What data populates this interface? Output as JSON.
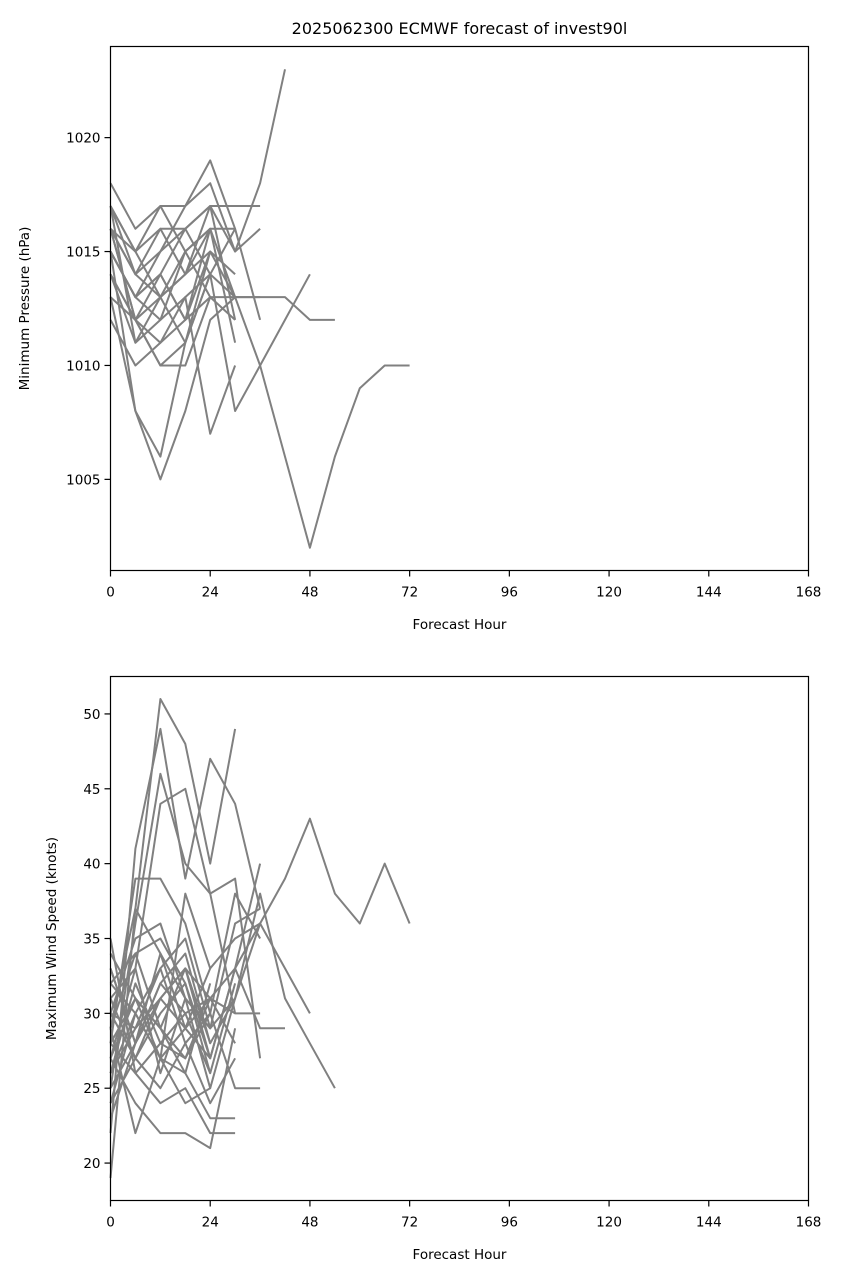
{
  "chart_data": [
    {
      "type": "line",
      "title": "2025062300 ECMWF forecast of invest90l",
      "xlabel": "Forecast Hour",
      "ylabel": "Minimum Pressure (hPa)",
      "xlim": [
        0,
        168
      ],
      "ylim": [
        1001,
        1024
      ],
      "xticks": [
        0,
        24,
        48,
        72,
        96,
        120,
        144,
        168
      ],
      "yticks": [
        1005,
        1010,
        1015,
        1020
      ],
      "line_color": "#808080",
      "grid": false,
      "series": [
        {
          "x": [
            0,
            6,
            12,
            18,
            24,
            30,
            36,
            42
          ],
          "y": [
            1018,
            1016,
            1017,
            1017,
            1018,
            1015,
            1018,
            1023
          ]
        },
        {
          "x": [
            0,
            6,
            12,
            18,
            24,
            30,
            36
          ],
          "y": [
            1017,
            1015,
            1016,
            1016,
            1017,
            1017,
            1017
          ]
        },
        {
          "x": [
            0,
            6,
            12,
            18,
            24,
            30
          ],
          "y": [
            1016,
            1014,
            1015,
            1017,
            1019,
            1016
          ]
        },
        {
          "x": [
            0,
            6,
            12,
            18,
            24,
            30,
            36
          ],
          "y": [
            1017,
            1015,
            1017,
            1015,
            1016,
            1016,
            1012
          ]
        },
        {
          "x": [
            0,
            6,
            12,
            18,
            24,
            30
          ],
          "y": [
            1015,
            1013,
            1014,
            1016,
            1017,
            1012
          ]
        },
        {
          "x": [
            0,
            6,
            12,
            18,
            24,
            30
          ],
          "y": [
            1016,
            1014,
            1013,
            1015,
            1016,
            1011
          ]
        },
        {
          "x": [
            0,
            6,
            12,
            18,
            24,
            30,
            36
          ],
          "y": [
            1014,
            1012,
            1013,
            1014,
            1017,
            1015,
            1016
          ]
        },
        {
          "x": [
            0,
            6,
            12,
            18,
            24,
            30,
            36
          ],
          "y": [
            1015,
            1013,
            1014,
            1012,
            1016,
            1013,
            1013
          ]
        },
        {
          "x": [
            0,
            6,
            12,
            18,
            24,
            30
          ],
          "y": [
            1016,
            1015,
            1013,
            1014,
            1015,
            1013
          ]
        },
        {
          "x": [
            0,
            6,
            12,
            18,
            24,
            30,
            36,
            42,
            48,
            54
          ],
          "y": [
            1013,
            1012,
            1011,
            1012,
            1013,
            1013,
            1013,
            1013,
            1012,
            1012
          ]
        },
        {
          "x": [
            0,
            6,
            12,
            18,
            24,
            30,
            36,
            42,
            48
          ],
          "y": [
            1012,
            1010,
            1011,
            1013,
            1014,
            1008,
            1010,
            1012,
            1014
          ]
        },
        {
          "x": [
            0,
            6,
            12,
            18,
            24,
            30,
            36,
            42,
            48,
            54,
            60,
            66,
            72
          ],
          "y": [
            1014,
            1012,
            1010,
            1011,
            1014,
            1013,
            1010,
            1006,
            1002,
            1006,
            1009,
            1010,
            1010
          ]
        },
        {
          "x": [
            0,
            6,
            12,
            18,
            24,
            30
          ],
          "y": [
            1013,
            1008,
            1006,
            1011,
            1015,
            1014
          ]
        },
        {
          "x": [
            0,
            6,
            12,
            18,
            24,
            30
          ],
          "y": [
            1015,
            1008,
            1005,
            1008,
            1012,
            1013
          ]
        },
        {
          "x": [
            0,
            6,
            12,
            18,
            24,
            30
          ],
          "y": [
            1016,
            1012,
            1010,
            1010,
            1013,
            1012
          ]
        },
        {
          "x": [
            0,
            6,
            12,
            18,
            24,
            30
          ],
          "y": [
            1017,
            1011,
            1012,
            1013,
            1007,
            1010
          ]
        },
        {
          "x": [
            0,
            6,
            12,
            18,
            24,
            30
          ],
          "y": [
            1015,
            1013,
            1015,
            1016,
            1014,
            1016
          ]
        },
        {
          "x": [
            0,
            6,
            12,
            18,
            24
          ],
          "y": [
            1017,
            1014,
            1016,
            1014,
            1016
          ]
        },
        {
          "x": [
            0,
            6,
            12,
            18,
            24
          ],
          "y": [
            1016,
            1012,
            1014,
            1012,
            1015
          ]
        },
        {
          "x": [
            0,
            6,
            12,
            18,
            24
          ],
          "y": [
            1014,
            1011,
            1013,
            1011,
            1014
          ]
        },
        {
          "x": [
            0,
            6,
            12,
            18,
            24
          ],
          "y": [
            1015,
            1013,
            1012,
            1015,
            1013
          ]
        }
      ]
    },
    {
      "type": "line",
      "title": "",
      "xlabel": "Forecast Hour",
      "ylabel": "Maximum Wind Speed (knots)",
      "xlim": [
        0,
        168
      ],
      "ylim": [
        17.5,
        52.5
      ],
      "xticks": [
        0,
        24,
        48,
        72,
        96,
        120,
        144,
        168
      ],
      "yticks": [
        20,
        25,
        30,
        35,
        40,
        45,
        50
      ],
      "line_color": "#808080",
      "grid": false,
      "series": [
        {
          "x": [
            0,
            6,
            12,
            18,
            24,
            30
          ],
          "y": [
            19,
            37,
            51,
            48,
            40,
            49
          ]
        },
        {
          "x": [
            0,
            6,
            12,
            18,
            24,
            30,
            36
          ],
          "y": [
            22,
            41,
            49,
            39,
            47,
            44,
            37
          ]
        },
        {
          "x": [
            0,
            6,
            12,
            18,
            24,
            30,
            36
          ],
          "y": [
            25,
            36,
            46,
            40,
            38,
            39,
            27
          ]
        },
        {
          "x": [
            0,
            6,
            12,
            18,
            24,
            30
          ],
          "y": [
            27,
            33,
            44,
            45,
            38,
            30
          ]
        },
        {
          "x": [
            0,
            6,
            12,
            18,
            24,
            30,
            36,
            42,
            48,
            54,
            60,
            66,
            72
          ],
          "y": [
            23,
            28,
            32,
            30,
            31,
            33,
            36,
            39,
            43,
            38,
            36,
            40,
            36
          ]
        },
        {
          "x": [
            0,
            6,
            12,
            18,
            24,
            30,
            36,
            42,
            48
          ],
          "y": [
            26,
            30,
            33,
            35,
            29,
            31,
            36,
            33,
            30
          ]
        },
        {
          "x": [
            0,
            6,
            12,
            18,
            24,
            30,
            36,
            42,
            48,
            54
          ],
          "y": [
            24,
            27,
            31,
            33,
            28,
            31,
            38,
            31,
            28,
            25
          ]
        },
        {
          "x": [
            0,
            6,
            12,
            18,
            24,
            30,
            36
          ],
          "y": [
            28,
            39,
            39,
            36,
            30,
            38,
            35
          ]
        },
        {
          "x": [
            0,
            6,
            12,
            18,
            24,
            30,
            36
          ],
          "y": [
            30,
            35,
            36,
            31,
            29,
            36,
            37
          ]
        },
        {
          "x": [
            0,
            6,
            12,
            18,
            24,
            30,
            36
          ],
          "y": [
            32,
            34,
            35,
            32,
            27,
            33,
            40
          ]
        },
        {
          "x": [
            0,
            6,
            12,
            18,
            24,
            30,
            36
          ],
          "y": [
            33,
            28,
            34,
            29,
            31,
            30,
            30
          ]
        },
        {
          "x": [
            0,
            6,
            12,
            18,
            24,
            30,
            36,
            42
          ],
          "y": [
            34,
            31,
            29,
            33,
            27,
            33,
            29,
            29
          ]
        },
        {
          "x": [
            0,
            6,
            12,
            18,
            24,
            30,
            36
          ],
          "y": [
            35,
            26,
            28,
            27,
            30,
            25,
            25
          ]
        },
        {
          "x": [
            0,
            6,
            12,
            18,
            24,
            30
          ],
          "y": [
            31,
            27,
            25,
            28,
            24,
            27
          ]
        },
        {
          "x": [
            0,
            6,
            12,
            18,
            24,
            30
          ],
          "y": [
            29,
            22,
            27,
            26,
            23,
            23
          ]
        },
        {
          "x": [
            0,
            6,
            12,
            18,
            24,
            30
          ],
          "y": [
            27,
            24,
            22,
            22,
            21,
            29
          ]
        },
        {
          "x": [
            0,
            6,
            12,
            18,
            24,
            30
          ],
          "y": [
            28,
            26,
            24,
            25,
            22,
            22
          ]
        },
        {
          "x": [
            0,
            6,
            12,
            18,
            24,
            30
          ],
          "y": [
            30,
            29,
            31,
            33,
            31,
            28
          ]
        },
        {
          "x": [
            0,
            6,
            12,
            18,
            24,
            30
          ],
          "y": [
            26,
            32,
            28,
            30,
            26,
            32
          ]
        },
        {
          "x": [
            0,
            6,
            12,
            18,
            24,
            30,
            36
          ],
          "y": [
            24,
            30,
            27,
            38,
            33,
            35,
            36
          ]
        },
        {
          "x": [
            0,
            6,
            12,
            18,
            24,
            30
          ],
          "y": [
            29,
            37,
            34,
            31,
            25,
            31
          ]
        },
        {
          "x": [
            0,
            6,
            12,
            18,
            24
          ],
          "y": [
            27,
            31,
            27,
            29,
            27
          ]
        },
        {
          "x": [
            0,
            6,
            12,
            18,
            24
          ],
          "y": [
            25,
            28,
            32,
            34,
            28
          ]
        },
        {
          "x": [
            0,
            6,
            12,
            18,
            24
          ],
          "y": [
            31,
            33,
            26,
            31,
            29
          ]
        },
        {
          "x": [
            0,
            6,
            12,
            18,
            24
          ],
          "y": [
            28,
            31,
            29,
            26,
            32
          ]
        },
        {
          "x": [
            0,
            6,
            12,
            18,
            24
          ],
          "y": [
            26,
            29,
            33,
            28,
            30
          ]
        },
        {
          "x": [
            0,
            6,
            12,
            18,
            24
          ],
          "y": [
            30,
            27,
            30,
            32,
            26
          ]
        },
        {
          "x": [
            0,
            6,
            12,
            18,
            24
          ],
          "y": [
            32,
            30,
            27,
            24,
            25
          ]
        },
        {
          "x": [
            0,
            6,
            12,
            18,
            24
          ],
          "y": [
            29,
            34,
            29,
            27,
            31
          ]
        },
        {
          "x": [
            0,
            6,
            12,
            18,
            24
          ],
          "y": [
            33,
            28,
            31,
            29,
            33
          ]
        }
      ]
    }
  ]
}
